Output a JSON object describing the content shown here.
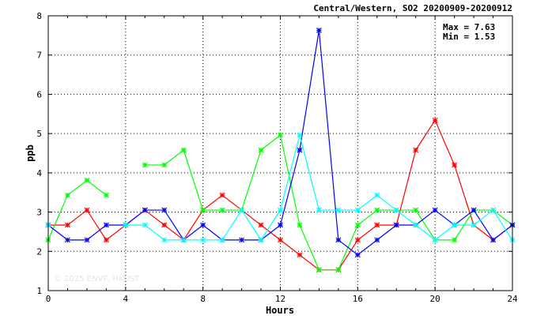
{
  "chart_data": {
    "type": "line",
    "title": "Central/Western, SO2 20200909-20200912",
    "xlabel": "Hours",
    "ylabel": "ppb",
    "xlim": [
      0,
      24
    ],
    "ylim": [
      1,
      8
    ],
    "x_ticks": [
      0,
      4,
      8,
      12,
      16,
      20,
      24
    ],
    "y_ticks": [
      1,
      2,
      3,
      4,
      5,
      6,
      7,
      8
    ],
    "grid": true,
    "max_label": "Max = 7.63",
    "min_label": "Min = 1.53",
    "watermark": "© 2025 ENVF, HKUST",
    "x": [
      0,
      1,
      2,
      3,
      4,
      5,
      6,
      7,
      8,
      9,
      10,
      11,
      12,
      13,
      14,
      15,
      16,
      17,
      18,
      19,
      20,
      21,
      22,
      23,
      24
    ],
    "series": [
      {
        "color": "#ff0000",
        "values": [
          2.67,
          2.67,
          3.05,
          2.29,
          2.67,
          3.05,
          2.67,
          2.29,
          3.05,
          3.43,
          3.05,
          2.67,
          2.29,
          1.91,
          1.53,
          1.53,
          2.29,
          2.67,
          2.67,
          4.58,
          5.34,
          4.2,
          2.67,
          2.29,
          2.67
        ]
      },
      {
        "color": "#00ff00",
        "values": [
          2.29,
          3.43,
          3.81,
          3.43,
          null,
          4.2,
          4.2,
          4.58,
          3.05,
          3.05,
          3.05,
          4.58,
          4.96,
          2.67,
          1.53,
          1.53,
          2.67,
          3.05,
          3.05,
          3.05,
          2.29,
          2.29,
          3.05,
          3.05,
          2.67
        ]
      },
      {
        "color": "#0000ff",
        "values": [
          2.67,
          2.29,
          2.29,
          2.67,
          2.67,
          3.05,
          3.05,
          2.29,
          2.67,
          2.29,
          2.29,
          2.29,
          2.67,
          4.58,
          7.63,
          2.29,
          1.91,
          2.29,
          2.67,
          2.67,
          3.05,
          2.67,
          3.05,
          2.29,
          2.67
        ]
      },
      {
        "color": "#00ffff",
        "values": [
          2.67,
          null,
          null,
          null,
          2.67,
          2.67,
          2.29,
          2.29,
          2.29,
          2.29,
          3.05,
          2.29,
          3.05,
          4.96,
          3.05,
          3.05,
          3.05,
          3.43,
          3.05,
          2.67,
          2.29,
          2.67,
          2.67,
          3.05,
          2.29
        ]
      }
    ]
  }
}
